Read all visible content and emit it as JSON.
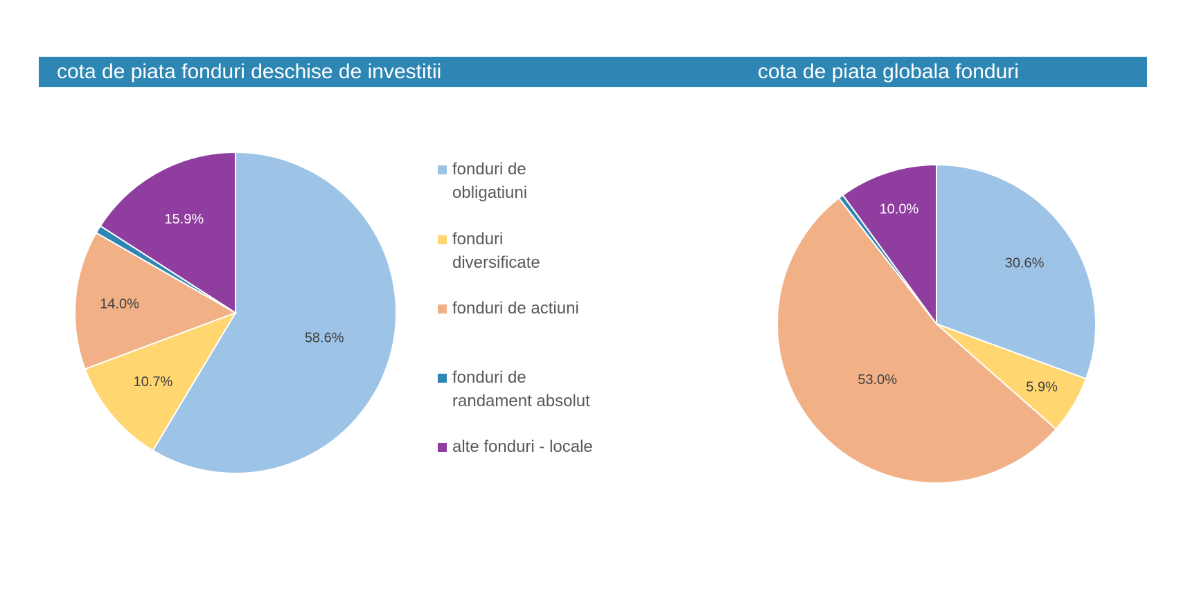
{
  "header": {
    "background": "#2e86b4",
    "title_left": "cota de piata fonduri deschise de investitii",
    "title_right": "cota de piata globala fonduri"
  },
  "legend": {
    "items": [
      {
        "label": "fonduri de\nobligatiuni",
        "color": "#9dc3e6"
      },
      {
        "label": "fonduri\ndiversificate",
        "color": "#ffd670"
      },
      {
        "label": "fonduri de actiuni",
        "color": "#f2b086"
      },
      {
        "label": "fonduri de\nrandament absolut",
        "color": "#2e86b4"
      },
      {
        "label": "alte fonduri - locale",
        "color": "#8f3d9e"
      }
    ]
  },
  "chart_data": [
    {
      "type": "pie",
      "title": "cota de piata fonduri deschise de investitii",
      "categories": [
        "fonduri de obligatiuni",
        "fonduri diversificate",
        "fonduri de actiuni",
        "fonduri de randament absolut",
        "alte fonduri - locale"
      ],
      "values": [
        58.6,
        10.7,
        14.0,
        0.8,
        15.9
      ],
      "data_labels": [
        "58.6%",
        "10.7%",
        "14.0%",
        "",
        "15.9%"
      ],
      "colors": [
        "#9dc3e6",
        "#ffd670",
        "#f2b086",
        "#2e86b4",
        "#8f3d9e"
      ],
      "legend": "right"
    },
    {
      "type": "pie",
      "title": "cota de piata globala fonduri",
      "categories": [
        "fonduri de obligatiuni",
        "fonduri diversificate",
        "fonduri de actiuni",
        "fonduri de randament absolut",
        "alte fonduri - locale"
      ],
      "values": [
        30.6,
        5.9,
        53.0,
        0.5,
        10.0
      ],
      "data_labels": [
        "30.6%",
        "5.9%",
        "53.0%",
        "",
        "10.0%"
      ],
      "colors": [
        "#9dc3e6",
        "#ffd670",
        "#f2b086",
        "#2e86b4",
        "#8f3d9e"
      ]
    }
  ]
}
